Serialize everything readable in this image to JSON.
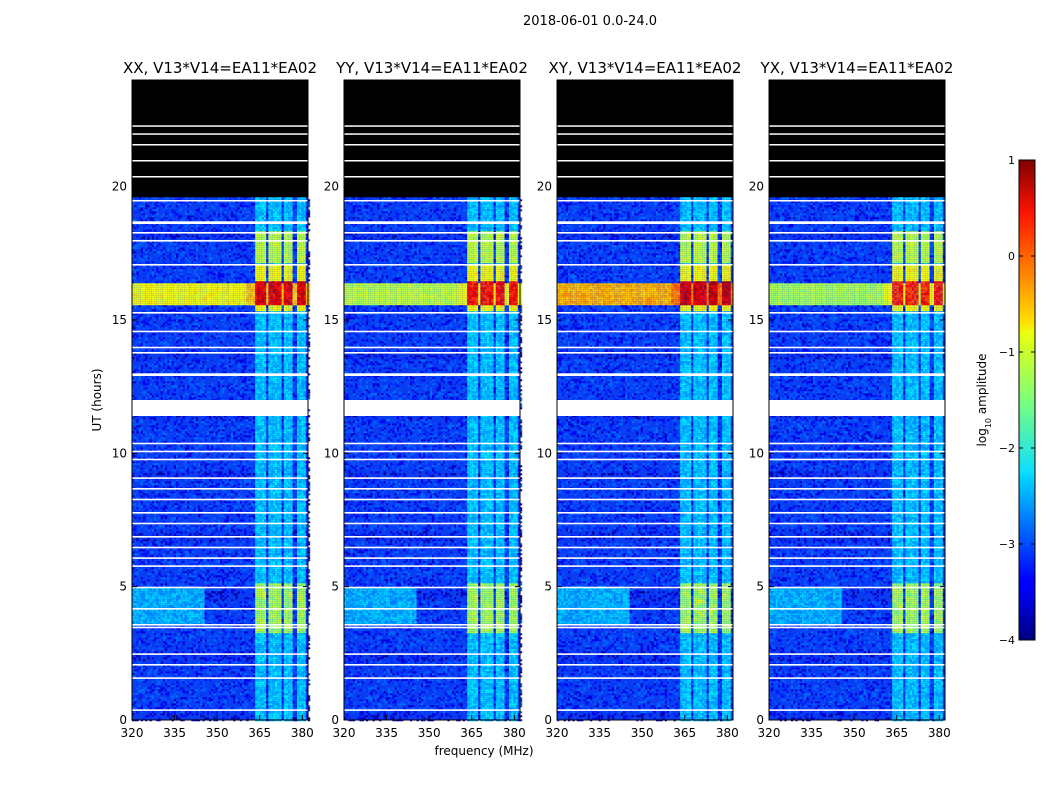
{
  "figure": {
    "suptitle": "2018-06-01 0.0-24.0"
  },
  "chart_data": [
    {
      "type": "heatmap",
      "title": "XX, V13*V14=EA11*EA02",
      "xlabel": "",
      "ylabel": "UT (hours)",
      "xlim": [
        320,
        382
      ],
      "ylim": [
        0,
        24
      ],
      "xticks": [
        320,
        335,
        350,
        365,
        380
      ],
      "yticks": [
        0,
        5,
        10,
        15,
        20
      ],
      "peak_log10_amplitude": 0.8,
      "band_16h_log10_amplitude": -0.6
    },
    {
      "type": "heatmap",
      "title": "YY, V13*V14=EA11*EA02",
      "xlabel": "frequency (MHz)",
      "ylabel": "",
      "xlim": [
        320,
        382
      ],
      "ylim": [
        0,
        24
      ],
      "xticks": [
        320,
        335,
        350,
        365,
        380
      ],
      "yticks": [
        0,
        5,
        10,
        15,
        20
      ],
      "peak_log10_amplitude": 0.6,
      "band_16h_log10_amplitude": -0.9
    },
    {
      "type": "heatmap",
      "title": "XY, V13*V14=EA11*EA02",
      "xlabel": "",
      "ylabel": "",
      "xlim": [
        320,
        382
      ],
      "ylim": [
        0,
        24
      ],
      "xticks": [
        320,
        335,
        350,
        365,
        380
      ],
      "yticks": [
        0,
        5,
        10,
        15,
        20
      ],
      "peak_log10_amplitude": 0.9,
      "band_16h_log10_amplitude": -0.2
    },
    {
      "type": "heatmap",
      "title": "YX, V13*V14=EA11*EA02",
      "xlabel": "",
      "ylabel": "",
      "xlim": [
        320,
        382
      ],
      "ylim": [
        0,
        24
      ],
      "xticks": [
        320,
        335,
        350,
        365,
        380
      ],
      "yticks": [
        0,
        5,
        10,
        15,
        20
      ],
      "peak_log10_amplitude": 0.5,
      "band_16h_log10_amplitude": -1.0
    }
  ],
  "colorbar": {
    "label": "log",
    "label_sub": "10",
    "label_rest": " amplitude",
    "range": [
      -4,
      1
    ],
    "ticks": [
      1,
      0,
      -1,
      -2,
      -3,
      -4
    ],
    "tick_labels": [
      "1",
      "0",
      "−1",
      "−2",
      "−3",
      "−4"
    ],
    "colormap": "jet"
  },
  "observation": {
    "data_ut_max": 19.6,
    "flagged_ut_ranges": [
      [
        11.4,
        12.0
      ],
      [
        12.9,
        13.0
      ],
      [
        18.6,
        18.7
      ],
      [
        19.6,
        24
      ]
    ],
    "rfi_freq_ranges_mhz": [
      [
        363,
        367
      ],
      [
        368,
        372
      ],
      [
        373,
        376
      ],
      [
        378,
        381
      ]
    ]
  },
  "colors": {
    "black": "#000000",
    "flag_white": "#ffffff",
    "background_blue": "#0a3cf0"
  }
}
